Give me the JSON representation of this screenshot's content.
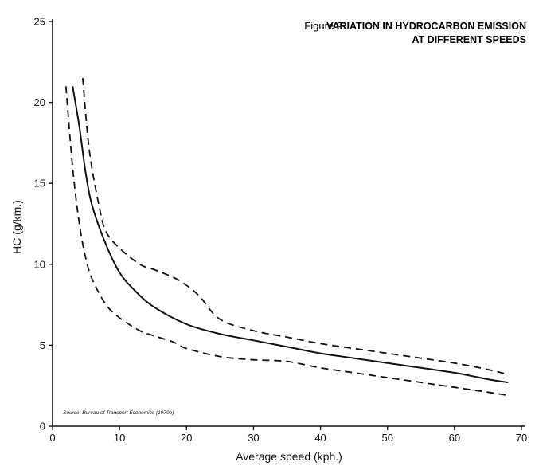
{
  "chart_data": {
    "type": "line",
    "figure_label": "Figure 9",
    "title_lines": [
      "VARIATION IN HYDROCARBON EMISSION",
      "AT DIFFERENT SPEEDS"
    ],
    "xlabel": "Average speed (kph.)",
    "ylabel": "HC (g/km.)",
    "xlim": [
      0,
      70
    ],
    "ylim": [
      0,
      25
    ],
    "xticks": [
      0,
      10,
      20,
      30,
      40,
      50,
      60,
      70
    ],
    "yticks": [
      0,
      5,
      10,
      15,
      20,
      25
    ],
    "grid": false,
    "legend": "none",
    "source": "Source: Bureau of Transport Economics (1979b)",
    "series": [
      {
        "style": "solid",
        "x": [
          3,
          4,
          5,
          6,
          8,
          10,
          12,
          15,
          20,
          25,
          30,
          35,
          40,
          45,
          50,
          55,
          60,
          65,
          68
        ],
        "y": [
          21,
          18.5,
          15.5,
          13.5,
          11.2,
          9.5,
          8.5,
          7.4,
          6.3,
          5.7,
          5.3,
          4.9,
          4.5,
          4.2,
          3.9,
          3.6,
          3.3,
          2.9,
          2.7
        ]
      },
      {
        "style": "dashed",
        "x": [
          4.5,
          5.5,
          7,
          8,
          10,
          13,
          15,
          18,
          20,
          22,
          25,
          30,
          35,
          40,
          45,
          50,
          55,
          60,
          65,
          68
        ],
        "y": [
          21.5,
          17,
          13.5,
          12,
          11,
          10,
          9.7,
          9.2,
          8.7,
          8,
          6.6,
          5.9,
          5.5,
          5.1,
          4.8,
          4.5,
          4.2,
          3.9,
          3.5,
          3.2
        ]
      },
      {
        "style": "dashed",
        "x": [
          2,
          3,
          4,
          5,
          6,
          8,
          10,
          13,
          15,
          18,
          20,
          25,
          30,
          35,
          40,
          45,
          50,
          55,
          60,
          65,
          68
        ],
        "y": [
          21,
          16,
          12.5,
          10.3,
          9,
          7.5,
          6.7,
          5.9,
          5.6,
          5.2,
          4.8,
          4.3,
          4.1,
          4,
          3.6,
          3.3,
          3,
          2.7,
          2.4,
          2.1,
          1.9
        ]
      }
    ]
  }
}
